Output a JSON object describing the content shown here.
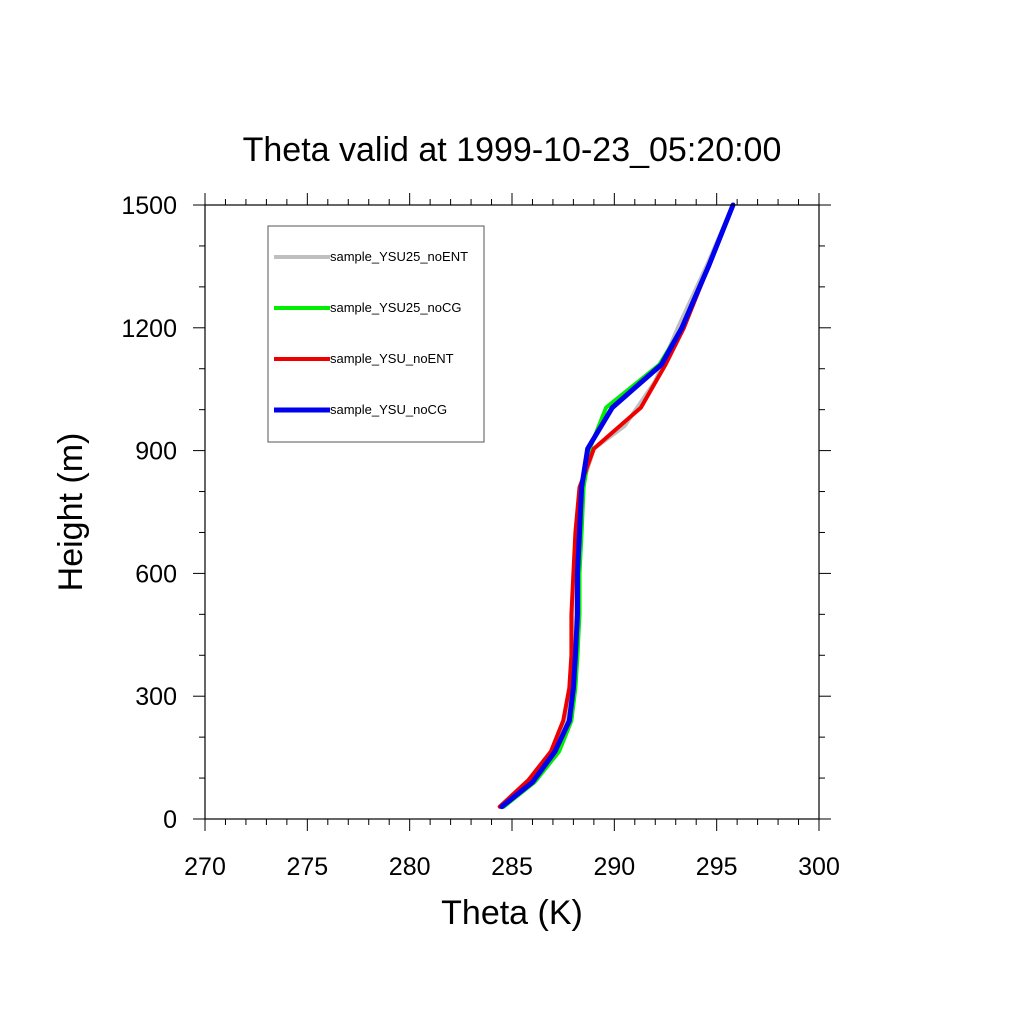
{
  "chart_data": {
    "type": "line",
    "title": "Theta valid at 1999-10-23_05:20:00",
    "xlabel": "Theta (K)",
    "ylabel": "Height (m)",
    "xlim": [
      270,
      300
    ],
    "ylim": [
      0,
      1500
    ],
    "xticks": [
      270,
      275,
      280,
      285,
      290,
      295,
      300
    ],
    "yticks": [
      0,
      300,
      600,
      900,
      1200,
      1500
    ],
    "grid": false,
    "legend_position": "top-left",
    "series": [
      {
        "name": "sample_YSU25_noENT",
        "color": "#bfbfbf",
        "points": [
          [
            284.5,
            30
          ],
          [
            286.0,
            95
          ],
          [
            287.0,
            165
          ],
          [
            287.7,
            240
          ],
          [
            287.9,
            320
          ],
          [
            288.0,
            400
          ],
          [
            288.0,
            500
          ],
          [
            288.1,
            600
          ],
          [
            288.2,
            700
          ],
          [
            288.4,
            810
          ],
          [
            289.0,
            905
          ],
          [
            290.5,
            960
          ],
          [
            292.0,
            1070
          ],
          [
            293.1,
            1200
          ],
          [
            294.5,
            1350
          ],
          [
            295.8,
            1500
          ]
        ]
      },
      {
        "name": "sample_YSU25_noCG",
        "color": "#00ee00",
        "points": [
          [
            284.6,
            30
          ],
          [
            286.1,
            90
          ],
          [
            287.3,
            165
          ],
          [
            287.9,
            240
          ],
          [
            288.1,
            320
          ],
          [
            288.2,
            400
          ],
          [
            288.3,
            500
          ],
          [
            288.3,
            600
          ],
          [
            288.4,
            700
          ],
          [
            288.5,
            810
          ],
          [
            288.8,
            905
          ],
          [
            289.6,
            1005
          ],
          [
            292.2,
            1110
          ],
          [
            293.3,
            1200
          ],
          [
            294.6,
            1350
          ],
          [
            295.8,
            1500
          ]
        ]
      },
      {
        "name": "sample_YSU_noENT",
        "color": "#ee0000",
        "points": [
          [
            284.4,
            30
          ],
          [
            285.8,
            95
          ],
          [
            286.9,
            165
          ],
          [
            287.5,
            240
          ],
          [
            287.8,
            320
          ],
          [
            287.9,
            400
          ],
          [
            287.9,
            500
          ],
          [
            288.0,
            600
          ],
          [
            288.1,
            700
          ],
          [
            288.3,
            810
          ],
          [
            289.0,
            905
          ],
          [
            291.3,
            1005
          ],
          [
            292.5,
            1110
          ],
          [
            293.4,
            1200
          ],
          [
            294.6,
            1350
          ],
          [
            295.8,
            1500
          ]
        ]
      },
      {
        "name": "sample_YSU_noCG",
        "color": "#0000ee",
        "points": [
          [
            284.5,
            30
          ],
          [
            286.0,
            90
          ],
          [
            287.1,
            165
          ],
          [
            287.8,
            240
          ],
          [
            288.0,
            320
          ],
          [
            288.1,
            400
          ],
          [
            288.2,
            500
          ],
          [
            288.2,
            600
          ],
          [
            288.3,
            700
          ],
          [
            288.4,
            810
          ],
          [
            288.7,
            905
          ],
          [
            289.9,
            1005
          ],
          [
            292.3,
            1110
          ],
          [
            293.3,
            1200
          ],
          [
            294.6,
            1350
          ],
          [
            295.8,
            1500
          ]
        ]
      }
    ]
  }
}
